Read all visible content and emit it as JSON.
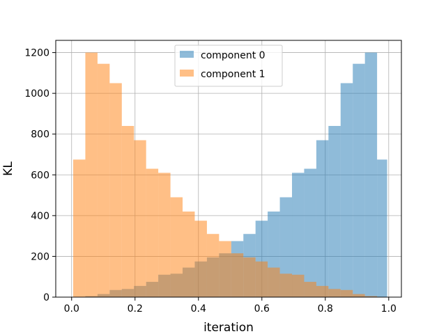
{
  "chart_data": {
    "type": "bar",
    "title": "",
    "xlabel": "iteration",
    "ylabel": "KL",
    "xlim": [
      -0.05,
      1.04
    ],
    "ylim": [
      0,
      1260
    ],
    "xticks": [
      0.0,
      0.2,
      0.4,
      0.6,
      0.8,
      1.0
    ],
    "xtick_labels": [
      "0.0",
      "0.2",
      "0.4",
      "0.6",
      "0.8",
      "1.0"
    ],
    "yticks": [
      0,
      200,
      400,
      600,
      800,
      1000,
      1200
    ],
    "ytick_labels": [
      "0",
      "200",
      "400",
      "600",
      "800",
      "1000",
      "1200"
    ],
    "grid": true,
    "legend_position": "top-center",
    "bin_edges": [
      0.005,
      0.0433,
      0.0817,
      0.12,
      0.1583,
      0.1967,
      0.235,
      0.2733,
      0.3117,
      0.35,
      0.3883,
      0.4267,
      0.465,
      0.5033,
      0.5417,
      0.58,
      0.6183,
      0.6567,
      0.695,
      0.7333,
      0.7717,
      0.81,
      0.8483,
      0.8867,
      0.925,
      0.9633,
      0.995
    ],
    "series": [
      {
        "name": "component 0",
        "color": "#1f77b4",
        "alpha": 0.5,
        "values": [
          0,
          5,
          15,
          35,
          40,
          55,
          75,
          110,
          115,
          145,
          175,
          195,
          215,
          275,
          310,
          375,
          420,
          490,
          610,
          630,
          770,
          840,
          1050,
          1145,
          1200,
          675
        ]
      },
      {
        "name": "component 1",
        "color": "#ff7f0e",
        "alpha": 0.5,
        "values": [
          675,
          1200,
          1145,
          1050,
          840,
          770,
          630,
          610,
          490,
          420,
          375,
          310,
          275,
          215,
          195,
          175,
          145,
          115,
          110,
          75,
          55,
          40,
          35,
          15,
          5,
          0
        ]
      }
    ]
  }
}
